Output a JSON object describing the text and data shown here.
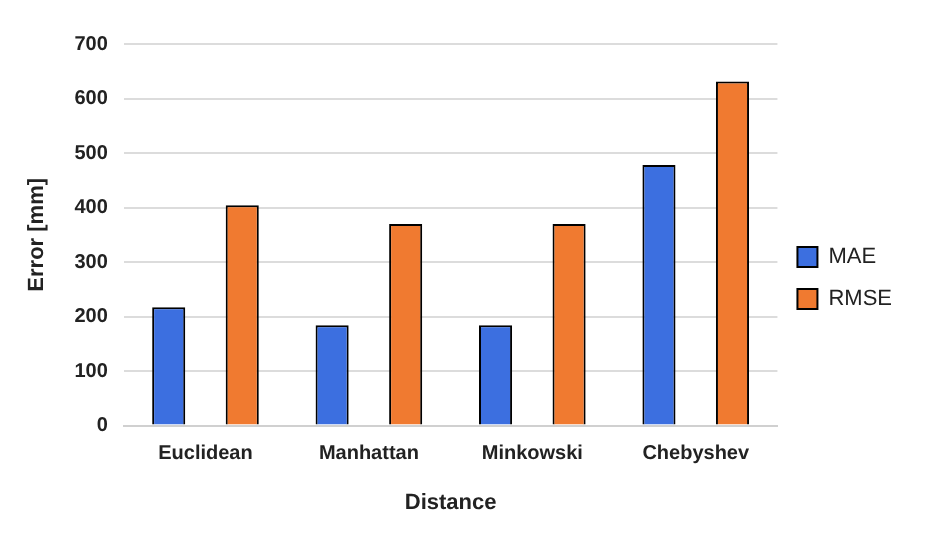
{
  "chart_data": {
    "type": "bar",
    "xlabel": "Distance",
    "ylabel": "Error [mm]",
    "categories": [
      "Euclidean",
      "Manhattan",
      "Minkowski",
      "Chebyshev"
    ],
    "series": [
      {
        "name": "MAE",
        "color": "#3c6fe0",
        "values": [
          217,
          184,
          184,
          478
        ]
      },
      {
        "name": "RMSE",
        "color": "#f07a30",
        "values": [
          404,
          370,
          370,
          631
        ]
      }
    ],
    "ylim": [
      0,
      700
    ],
    "yticks": [
      0,
      100,
      200,
      300,
      400,
      500,
      600,
      700
    ],
    "grid": "y",
    "legend": "right"
  }
}
